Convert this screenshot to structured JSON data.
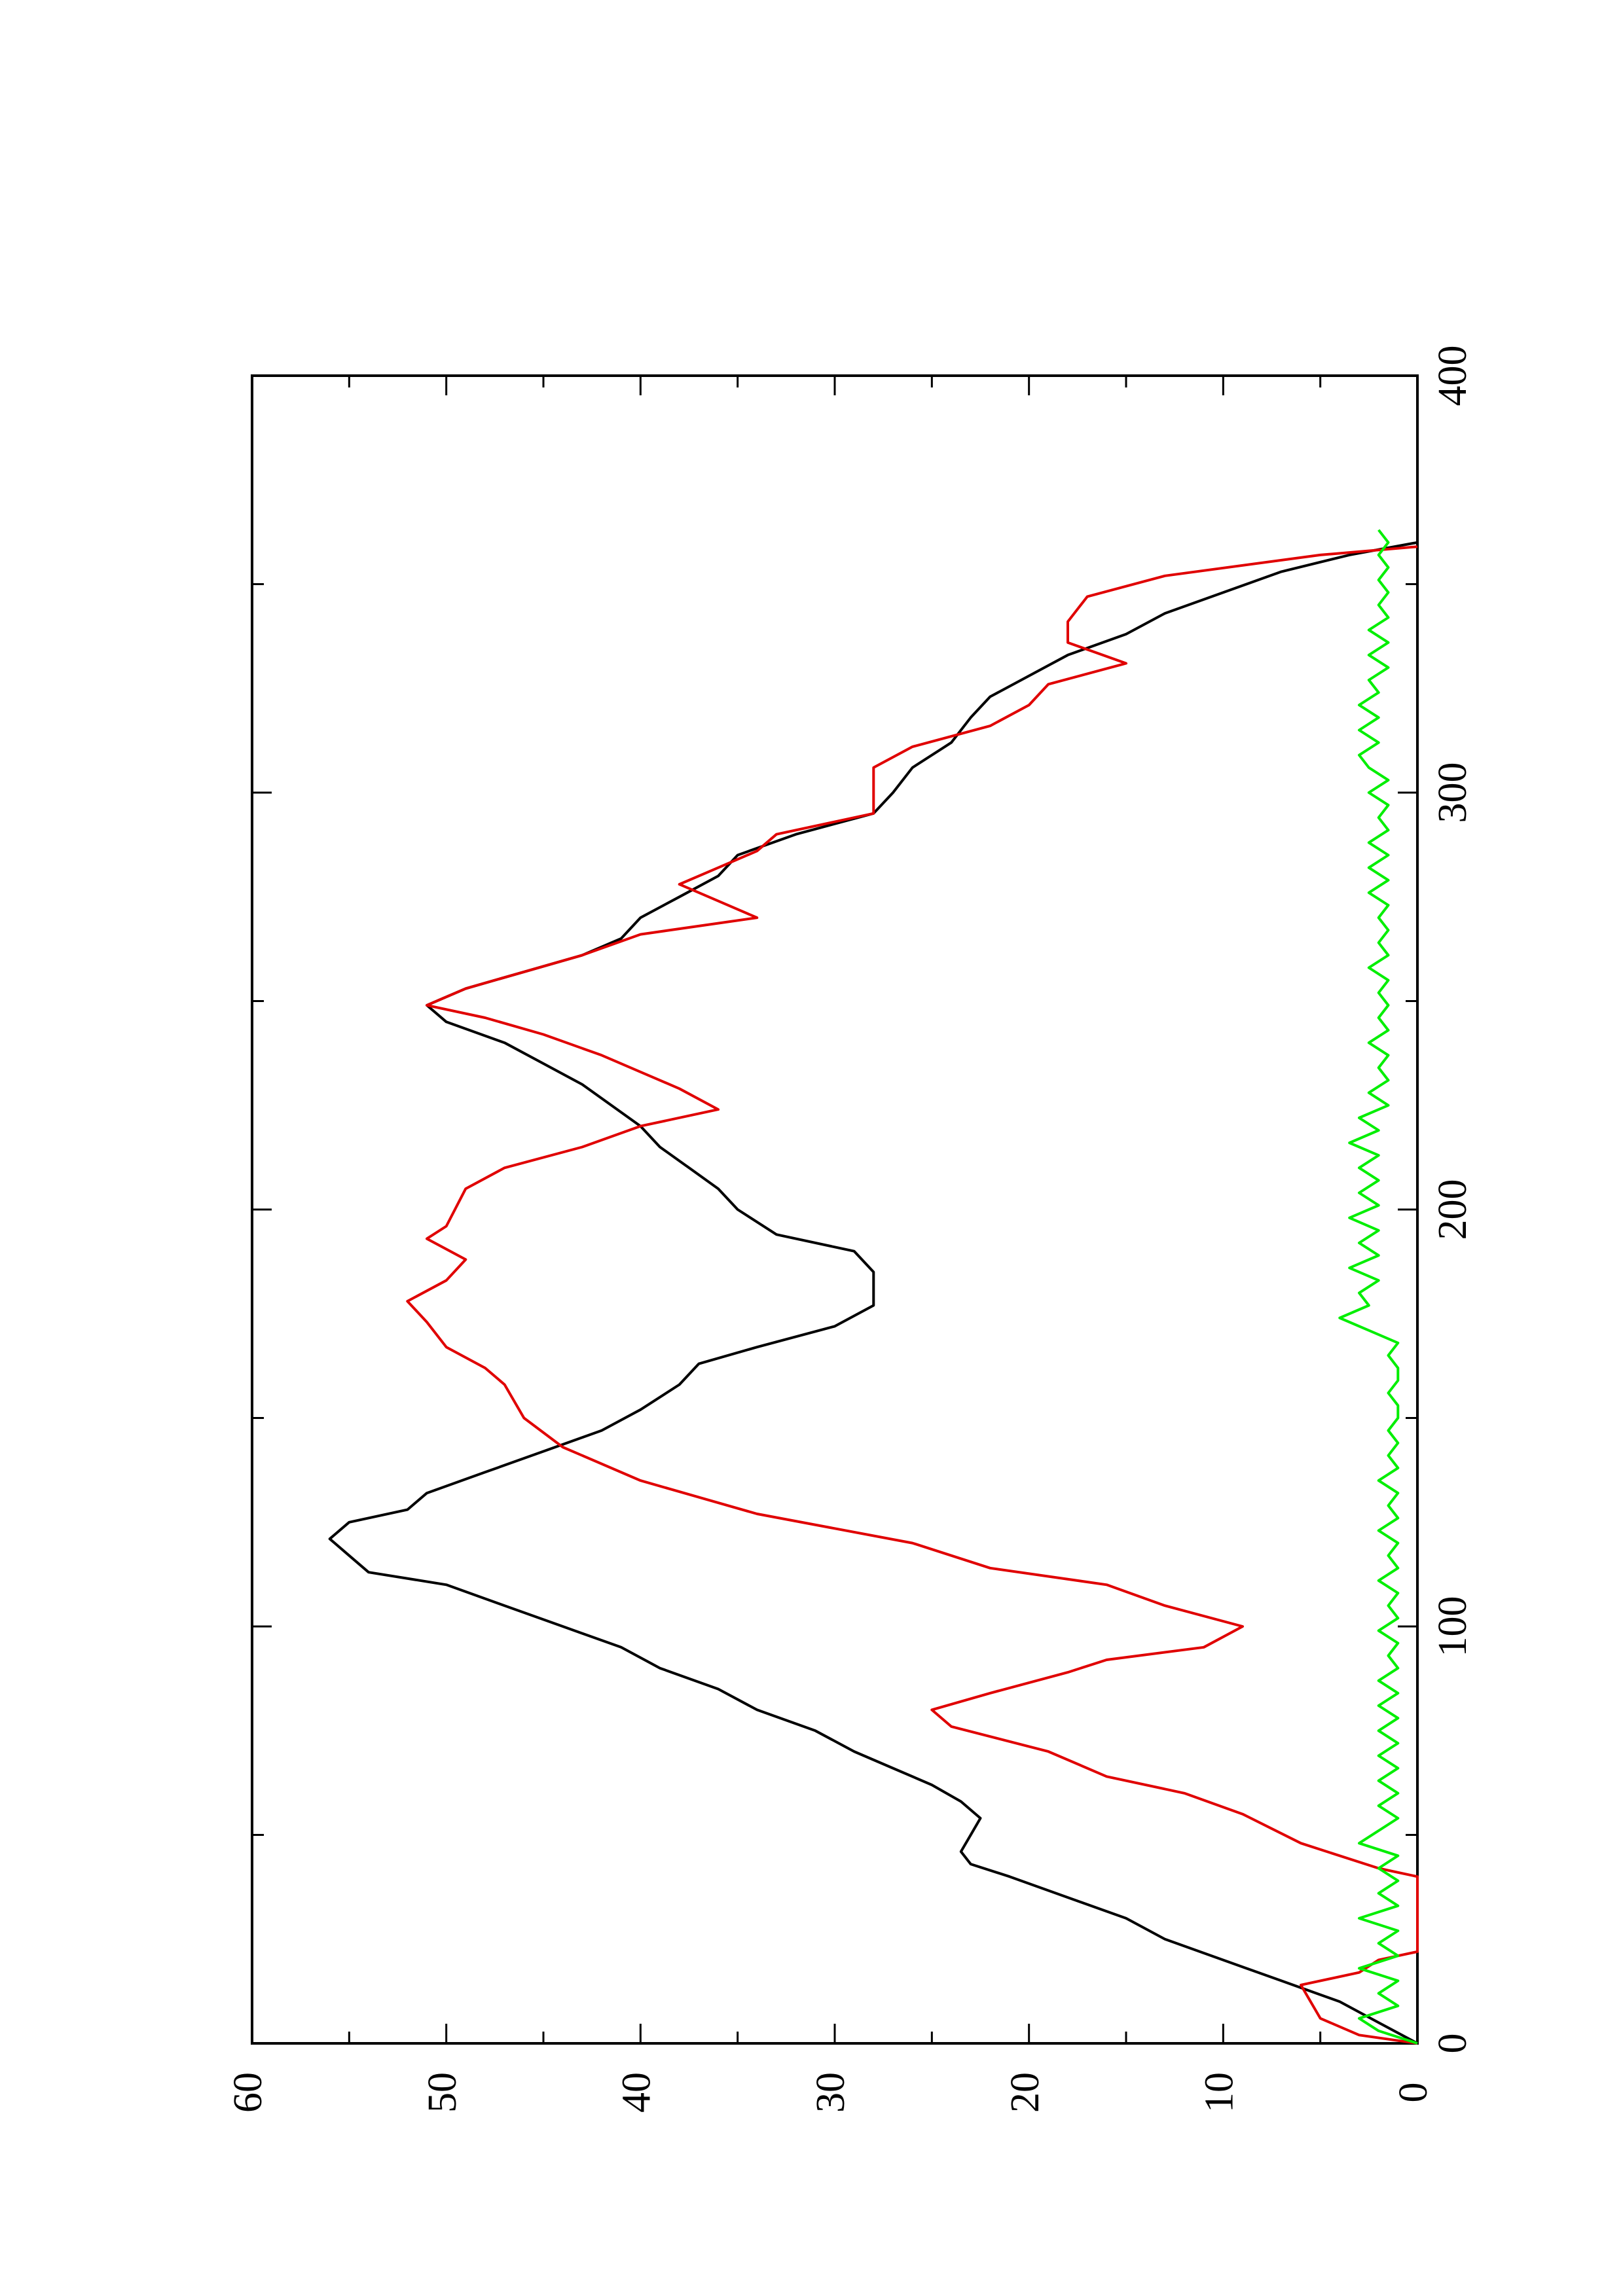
{
  "chart_data": {
    "type": "line",
    "orientation": "rotated 90 degrees counter-clockwise (x axis runs bottom-to-top on the right edge, y axis runs right-to-left along the bottom)",
    "title": "",
    "xlabel": "",
    "ylabel": "",
    "xlim": [
      0,
      400
    ],
    "ylim": [
      0,
      60
    ],
    "x_ticks": [
      "0",
      "100",
      "200",
      "300",
      "400"
    ],
    "y_ticks": [
      "0",
      "10",
      "20",
      "30",
      "40",
      "50",
      "60"
    ],
    "grid": false,
    "legend": "none",
    "series": [
      {
        "color": "#000000",
        "points": [
          [
            0,
            0
          ],
          [
            5,
            2
          ],
          [
            10,
            4
          ],
          [
            15,
            7
          ],
          [
            20,
            10
          ],
          [
            25,
            13
          ],
          [
            30,
            15
          ],
          [
            35,
            18
          ],
          [
            40,
            21
          ],
          [
            43,
            23
          ],
          [
            46,
            23.5
          ],
          [
            50,
            23
          ],
          [
            54,
            22.5
          ],
          [
            58,
            23.5
          ],
          [
            62,
            25
          ],
          [
            66,
            27
          ],
          [
            70,
            29
          ],
          [
            75,
            31
          ],
          [
            80,
            34
          ],
          [
            85,
            36
          ],
          [
            90,
            39
          ],
          [
            95,
            41
          ],
          [
            100,
            44
          ],
          [
            105,
            47
          ],
          [
            110,
            50
          ],
          [
            113,
            54
          ],
          [
            117,
            55
          ],
          [
            121,
            56
          ],
          [
            125,
            55
          ],
          [
            128,
            52
          ],
          [
            132,
            51
          ],
          [
            137,
            48
          ],
          [
            142,
            45
          ],
          [
            147,
            42
          ],
          [
            152,
            40
          ],
          [
            158,
            38
          ],
          [
            163,
            37
          ],
          [
            167,
            34
          ],
          [
            172,
            30
          ],
          [
            177,
            28
          ],
          [
            181,
            28
          ],
          [
            185,
            28
          ],
          [
            190,
            29
          ],
          [
            194,
            33
          ],
          [
            200,
            35
          ],
          [
            205,
            36
          ],
          [
            210,
            37.5
          ],
          [
            215,
            39
          ],
          [
            220,
            40
          ],
          [
            225,
            41.5
          ],
          [
            230,
            43
          ],
          [
            235,
            45
          ],
          [
            240,
            47
          ],
          [
            245,
            50
          ],
          [
            249,
            51
          ],
          [
            253,
            49
          ],
          [
            257,
            46
          ],
          [
            261,
            43
          ],
          [
            265,
            41
          ],
          [
            270,
            40
          ],
          [
            275,
            38
          ],
          [
            280,
            36
          ],
          [
            285,
            35
          ],
          [
            290,
            32
          ],
          [
            295,
            28
          ],
          [
            300,
            27
          ],
          [
            306,
            26
          ],
          [
            312,
            24
          ],
          [
            318,
            23
          ],
          [
            323,
            22
          ],
          [
            328,
            20
          ],
          [
            333,
            18
          ],
          [
            338,
            15
          ],
          [
            343,
            13
          ],
          [
            348,
            10
          ],
          [
            353,
            7
          ],
          [
            357,
            3.5
          ],
          [
            360,
            0
          ]
        ]
      },
      {
        "color": "#e00000",
        "points": [
          [
            0,
            0
          ],
          [
            2,
            3
          ],
          [
            6,
            5
          ],
          [
            14,
            6
          ],
          [
            17,
            3
          ],
          [
            20,
            2
          ],
          [
            22,
            0
          ],
          [
            28,
            -1
          ],
          [
            40,
            0
          ],
          [
            42,
            2
          ],
          [
            48,
            6
          ],
          [
            55,
            9
          ],
          [
            60,
            12
          ],
          [
            64,
            16
          ],
          [
            70,
            19
          ],
          [
            76,
            24
          ],
          [
            80,
            25
          ],
          [
            84,
            22
          ],
          [
            89,
            18
          ],
          [
            92,
            16
          ],
          [
            95,
            11
          ],
          [
            100,
            9
          ],
          [
            105,
            13
          ],
          [
            110,
            16
          ],
          [
            114,
            22
          ],
          [
            120,
            26
          ],
          [
            127,
            34
          ],
          [
            135,
            40
          ],
          [
            143,
            44
          ],
          [
            150,
            46
          ],
          [
            158,
            47
          ],
          [
            162,
            48
          ],
          [
            167,
            50
          ],
          [
            173,
            51
          ],
          [
            178,
            52
          ],
          [
            183,
            50
          ],
          [
            188,
            49
          ],
          [
            193,
            51
          ],
          [
            196,
            50
          ],
          [
            205,
            49
          ],
          [
            210,
            47
          ],
          [
            215,
            43
          ],
          [
            220,
            40
          ],
          [
            224,
            36
          ],
          [
            229,
            38
          ],
          [
            233,
            40
          ],
          [
            237,
            42
          ],
          [
            242,
            45
          ],
          [
            246,
            48
          ],
          [
            249,
            51
          ],
          [
            253,
            49
          ],
          [
            257,
            46
          ],
          [
            261,
            43
          ],
          [
            266,
            40
          ],
          [
            270,
            34
          ],
          [
            274,
            36
          ],
          [
            278,
            38
          ],
          [
            282,
            36
          ],
          [
            286,
            34
          ],
          [
            290,
            33
          ],
          [
            295,
            28
          ],
          [
            300,
            28
          ],
          [
            306,
            28
          ],
          [
            311,
            26
          ],
          [
            316,
            22
          ],
          [
            321,
            20
          ],
          [
            326,
            19
          ],
          [
            331,
            15
          ],
          [
            336,
            18
          ],
          [
            341,
            18
          ],
          [
            347,
            17
          ],
          [
            352,
            13
          ],
          [
            357,
            5
          ],
          [
            359,
            0
          ]
        ]
      },
      {
        "color": "#00ee00",
        "points": [
          [
            0,
            0
          ],
          [
            3,
            2
          ],
          [
            6,
            3
          ],
          [
            9,
            1
          ],
          [
            12,
            2
          ],
          [
            15,
            1
          ],
          [
            18,
            3
          ],
          [
            21,
            1
          ],
          [
            24,
            2
          ],
          [
            27,
            1
          ],
          [
            30,
            3
          ],
          [
            33,
            1
          ],
          [
            36,
            2
          ],
          [
            39,
            1
          ],
          [
            42,
            2
          ],
          [
            45,
            1
          ],
          [
            48,
            3
          ],
          [
            51,
            2
          ],
          [
            54,
            1
          ],
          [
            57,
            2
          ],
          [
            60,
            1
          ],
          [
            63,
            2
          ],
          [
            66,
            1
          ],
          [
            69,
            2
          ],
          [
            72,
            1
          ],
          [
            75,
            2
          ],
          [
            78,
            1
          ],
          [
            81,
            2
          ],
          [
            84,
            1
          ],
          [
            87,
            2
          ],
          [
            90,
            1
          ],
          [
            93,
            1.5
          ],
          [
            96,
            1
          ],
          [
            99,
            2
          ],
          [
            102,
            1
          ],
          [
            105,
            1.5
          ],
          [
            108,
            1
          ],
          [
            111,
            2
          ],
          [
            114,
            1
          ],
          [
            117,
            1.5
          ],
          [
            120,
            1
          ],
          [
            123,
            2
          ],
          [
            126,
            1
          ],
          [
            129,
            1.5
          ],
          [
            132,
            1
          ],
          [
            135,
            2
          ],
          [
            138,
            1
          ],
          [
            141,
            1.5
          ],
          [
            144,
            1
          ],
          [
            147,
            1.5
          ],
          [
            150,
            1
          ],
          [
            153,
            1
          ],
          [
            156,
            1.5
          ],
          [
            159,
            1
          ],
          [
            162,
            1
          ],
          [
            165,
            1.5
          ],
          [
            168,
            1
          ],
          [
            171,
            2.5
          ],
          [
            174,
            4
          ],
          [
            177,
            2.5
          ],
          [
            180,
            3
          ],
          [
            183,
            2
          ],
          [
            186,
            3.5
          ],
          [
            189,
            2
          ],
          [
            192,
            3
          ],
          [
            195,
            2
          ],
          [
            198,
            3.5
          ],
          [
            201,
            2
          ],
          [
            204,
            3
          ],
          [
            207,
            2
          ],
          [
            210,
            3
          ],
          [
            213,
            2
          ],
          [
            216,
            3.5
          ],
          [
            219,
            2
          ],
          [
            222,
            3
          ],
          [
            225,
            1.5
          ],
          [
            228,
            2.5
          ],
          [
            231,
            1.5
          ],
          [
            234,
            2
          ],
          [
            237,
            1.5
          ],
          [
            240,
            2.5
          ],
          [
            243,
            1.5
          ],
          [
            246,
            2
          ],
          [
            249,
            1.5
          ],
          [
            252,
            2
          ],
          [
            255,
            1.5
          ],
          [
            258,
            2.5
          ],
          [
            261,
            1.5
          ],
          [
            264,
            2
          ],
          [
            267,
            1.5
          ],
          [
            270,
            2
          ],
          [
            273,
            1.5
          ],
          [
            276,
            2.5
          ],
          [
            279,
            1.5
          ],
          [
            282,
            2.5
          ],
          [
            285,
            1.5
          ],
          [
            288,
            2.5
          ],
          [
            291,
            1.5
          ],
          [
            294,
            2
          ],
          [
            297,
            1.5
          ],
          [
            300,
            2.5
          ],
          [
            303,
            1.5
          ],
          [
            306,
            2.5
          ],
          [
            309,
            3
          ],
          [
            312,
            2
          ],
          [
            315,
            3
          ],
          [
            318,
            2
          ],
          [
            321,
            3
          ],
          [
            324,
            2
          ],
          [
            327,
            2.5
          ],
          [
            330,
            1.5
          ],
          [
            333,
            2.5
          ],
          [
            336,
            1.5
          ],
          [
            339,
            2.5
          ],
          [
            342,
            1.5
          ],
          [
            345,
            2
          ],
          [
            348,
            1.5
          ],
          [
            351,
            2
          ],
          [
            354,
            1.5
          ],
          [
            357,
            2
          ],
          [
            360,
            1.5
          ],
          [
            363,
            2
          ]
        ]
      }
    ]
  }
}
